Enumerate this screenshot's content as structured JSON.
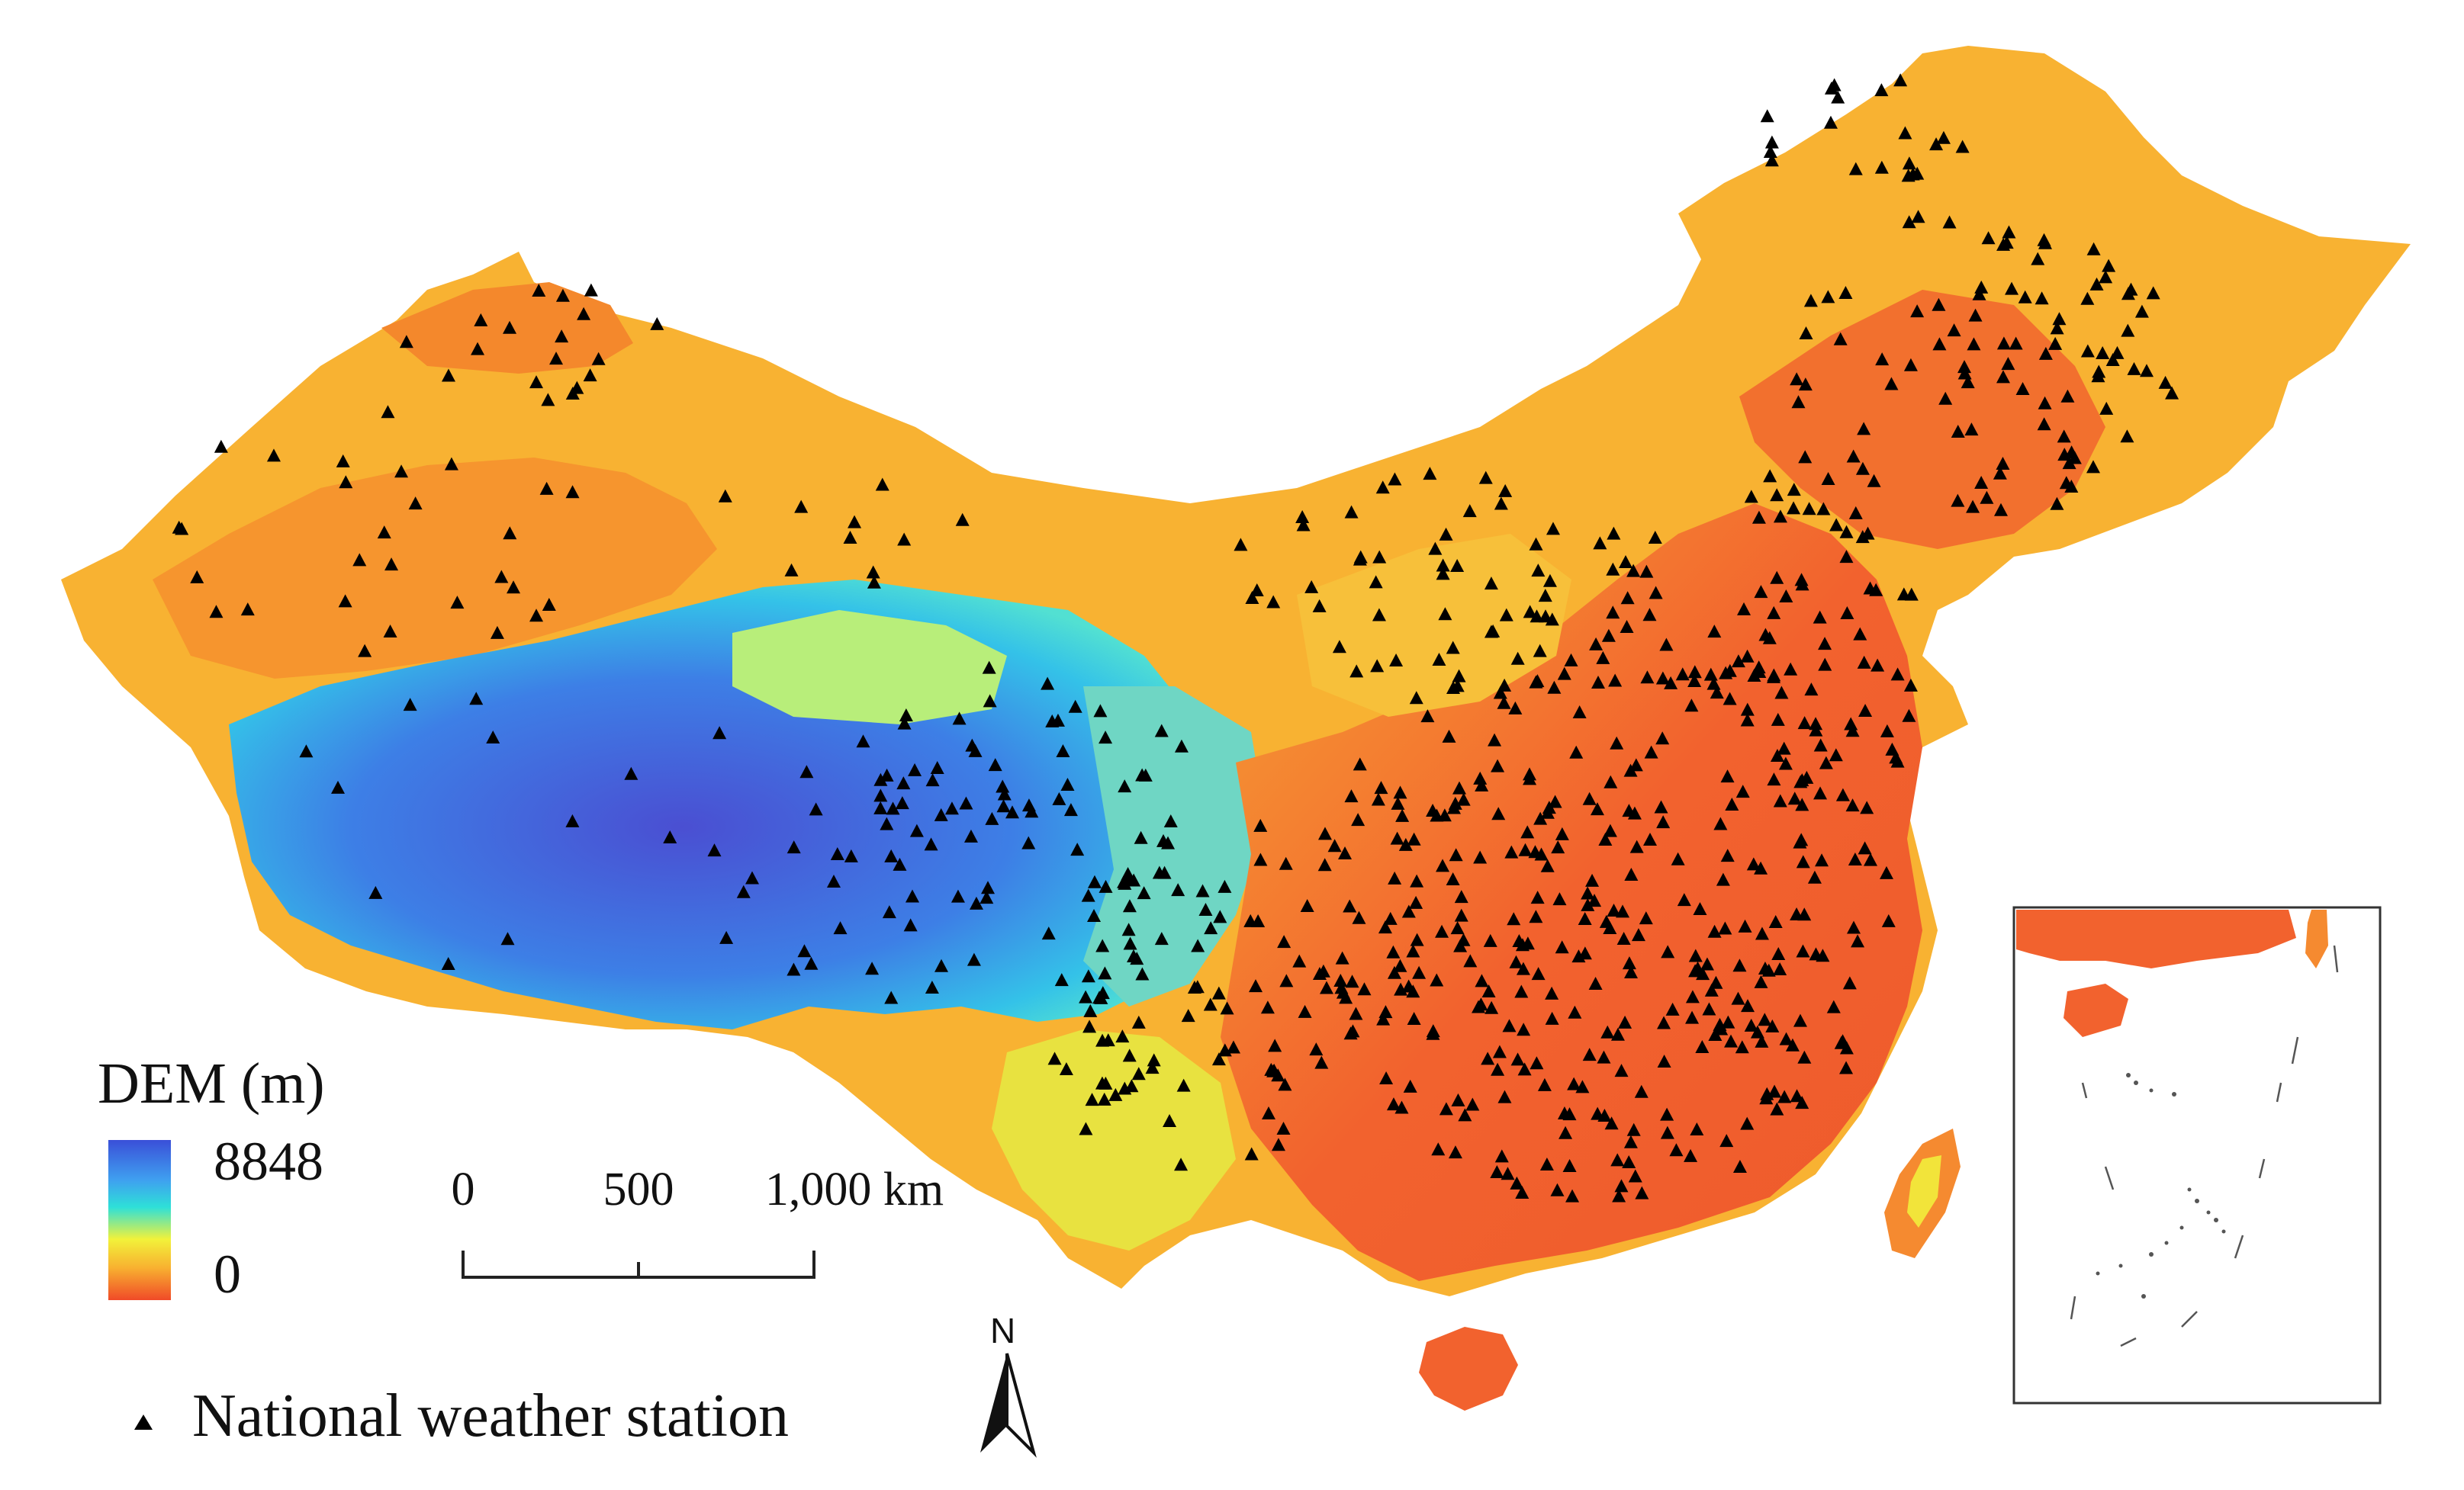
{
  "legend": {
    "title": "DEM (m)",
    "max_label": "8848",
    "min_label": "0",
    "gradient": [
      "#3a4fd8",
      "#3fa0f0",
      "#2ee0d8",
      "#f2f23a",
      "#f8b030",
      "#f04a28"
    ]
  },
  "scale_bar": {
    "labels": [
      "0",
      "500",
      "1,000 km"
    ]
  },
  "north_arrow": {
    "label": "N"
  },
  "station_legend": {
    "symbol": "triangle",
    "label": "National weather station"
  },
  "colors": {
    "lowland": "#f2622e",
    "plain": "#f68a32",
    "plateau_mid": "#f8c232",
    "plateau_high": "#33b8ee",
    "mountain_peak": "#4a55d6",
    "station": "#000000",
    "inset_border": "#333333"
  }
}
